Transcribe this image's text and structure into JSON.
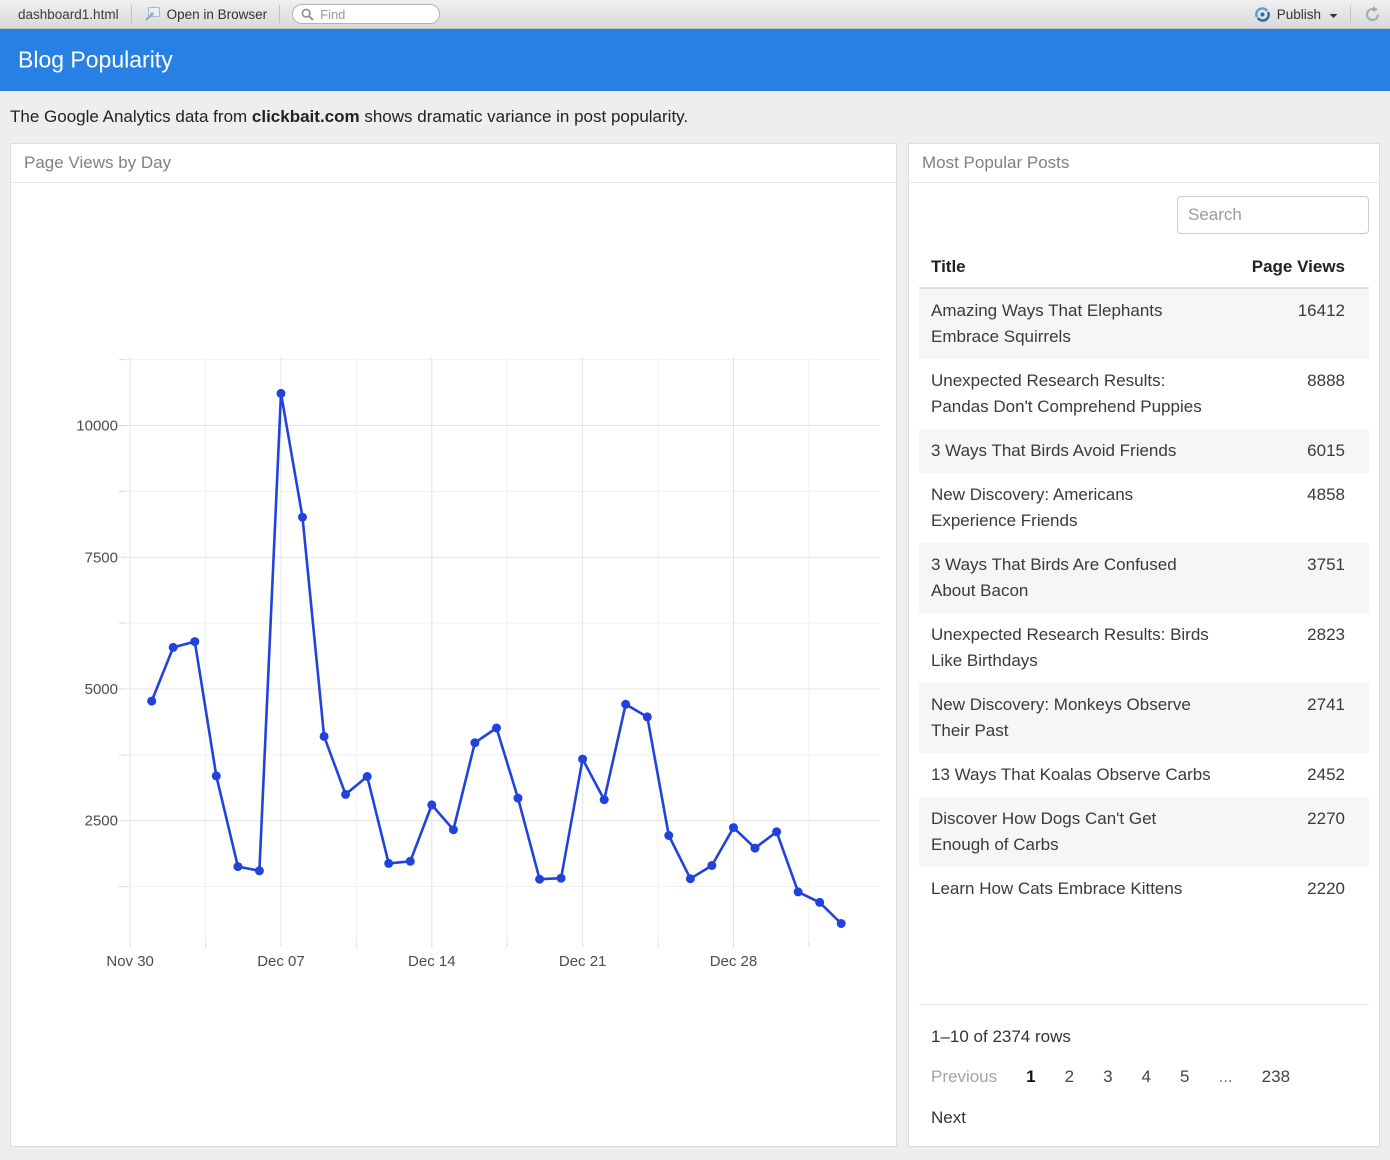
{
  "toolbar": {
    "tab_label": "dashboard1.html",
    "open_in_browser_label": "Open in Browser",
    "find_placeholder": "Find",
    "publish_label": "Publish"
  },
  "header": {
    "title": "Blog Popularity"
  },
  "subtitle": {
    "prefix": "The Google Analytics data from ",
    "highlight": "clickbait.com",
    "suffix": " shows dramatic variance in post popularity."
  },
  "chart_panel": {
    "title": "Page Views by Day"
  },
  "posts_panel": {
    "title": "Most Popular Posts",
    "search_placeholder": "Search",
    "table": {
      "columns": [
        "Title",
        "Page Views"
      ],
      "rows": [
        {
          "title": "Amazing Ways That Elephants Embrace Squirrels",
          "views": "16412"
        },
        {
          "title": "Unexpected Research Results: Pandas Don't Comprehend Puppies",
          "views": "8888"
        },
        {
          "title": "3 Ways That Birds Avoid Friends",
          "views": "6015"
        },
        {
          "title": "New Discovery: Americans Experience Friends",
          "views": "4858"
        },
        {
          "title": "3 Ways That Birds Are Confused About Bacon",
          "views": "3751"
        },
        {
          "title": "Unexpected Research Results: Birds Like Birthdays",
          "views": "2823"
        },
        {
          "title": "New Discovery: Monkeys Observe Their Past",
          "views": "2741"
        },
        {
          "title": "13 Ways That Koalas Observe Carbs",
          "views": "2452"
        },
        {
          "title": "Discover How Dogs Can't Get Enough of Carbs",
          "views": "2270"
        },
        {
          "title": "Learn How Cats Embrace Kittens",
          "views": "2220"
        }
      ]
    },
    "pagination": {
      "summary": "1–10 of 2374 rows",
      "previous_label": "Previous",
      "pages": [
        "1",
        "2",
        "3",
        "4",
        "5",
        "...",
        "238"
      ],
      "current_page": "1",
      "next_label": "Next"
    }
  },
  "chart_data": {
    "type": "line",
    "title": "Page Views by Day",
    "xlabel": "",
    "ylabel": "",
    "legend": "none",
    "grid": true,
    "line_color": "#2143db",
    "x_axis": {
      "tick_labels": [
        "Nov 30",
        "Dec 07",
        "Dec 14",
        "Dec 21",
        "Dec 28"
      ],
      "tick_day_offsets": [
        0,
        7,
        14,
        21,
        28
      ],
      "minor_day_offsets": [
        3.5,
        10.5,
        17.5,
        24.5,
        31.5
      ],
      "range_days": [
        -0.1,
        34.8
      ]
    },
    "y_axis": {
      "ticks": [
        2500,
        5000,
        7500,
        10000
      ],
      "minor_ticks": [
        1250,
        3750,
        6250,
        8750,
        11250
      ],
      "range": [
        218,
        11300
      ]
    },
    "series": [
      {
        "name": "Page Views",
        "dates": [
          "Dec 01",
          "Dec 02",
          "Dec 03",
          "Dec 04",
          "Dec 05",
          "Dec 06",
          "Dec 07",
          "Dec 08",
          "Dec 09",
          "Dec 10",
          "Dec 11",
          "Dec 12",
          "Dec 13",
          "Dec 14",
          "Dec 15",
          "Dec 16",
          "Dec 17",
          "Dec 18",
          "Dec 19",
          "Dec 20",
          "Dec 21",
          "Dec 22",
          "Dec 23",
          "Dec 24",
          "Dec 25",
          "Dec 26",
          "Dec 27",
          "Dec 28",
          "Dec 29",
          "Dec 30",
          "Dec 31",
          "Jan 01",
          "Jan 02"
        ],
        "day_offsets": [
          1,
          2,
          3,
          4,
          5,
          6,
          7,
          8,
          9,
          10,
          11,
          12,
          13,
          14,
          15,
          16,
          17,
          18,
          19,
          20,
          21,
          22,
          23,
          24,
          25,
          26,
          27,
          28,
          29,
          30,
          31,
          32,
          33
        ],
        "values": [
          4770,
          5790,
          5900,
          3350,
          1630,
          1550,
          10610,
          8260,
          4100,
          3000,
          3340,
          1690,
          1730,
          2800,
          2330,
          3980,
          4260,
          2930,
          1390,
          1410,
          3670,
          2900,
          4710,
          4470,
          2220,
          1400,
          1650,
          2370,
          1980,
          2290,
          1150,
          950,
          550
        ]
      }
    ]
  },
  "colors": {
    "header_bg": "#2780e3",
    "line": "#2143db",
    "row_stripe": "#f6f6f6"
  }
}
